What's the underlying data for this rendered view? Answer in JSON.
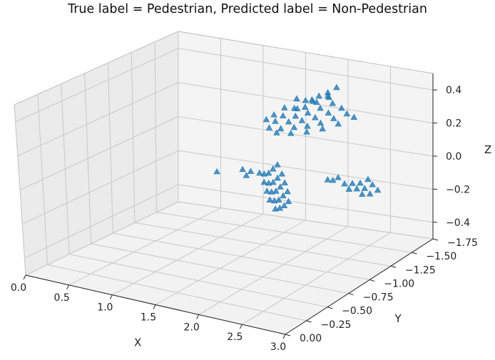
{
  "chart_data": {
    "type": "scatter3d",
    "title": "True label = Pedestrian, Predicted label = Non-Pedestrian",
    "xlabel": "X",
    "ylabel": "Y",
    "zlabel": "Z",
    "xlim": [
      0.0,
      3.0
    ],
    "ylim": [
      0.0,
      -1.75
    ],
    "zlim": [
      -0.5,
      0.5
    ],
    "x_ticks": [
      "3.0",
      "2.5",
      "2.0",
      "1.5",
      "1.0",
      "0.5",
      "0.0"
    ],
    "y_ticks": [
      "0.00",
      "−0.25",
      "−0.50",
      "−0.75",
      "−1.00",
      "−1.25",
      "−1.50",
      "−1.75"
    ],
    "z_ticks": [
      "0.4",
      "0.2",
      "0.0",
      "−0.2",
      "−0.4"
    ],
    "marker": "triangle",
    "color": "#1f77b4",
    "grid": true,
    "series": [
      {
        "points": [
          [
            2.35,
            -1.3,
            0.5
          ],
          [
            2.3,
            -1.25,
            0.48
          ],
          [
            2.25,
            -1.2,
            0.47
          ],
          [
            2.22,
            -1.15,
            0.46
          ],
          [
            2.2,
            -1.1,
            0.47
          ],
          [
            2.15,
            -1.05,
            0.49
          ],
          [
            2.28,
            -1.28,
            0.44
          ],
          [
            2.22,
            -1.2,
            0.43
          ],
          [
            2.17,
            -1.12,
            0.42
          ],
          [
            2.12,
            -1.05,
            0.43
          ],
          [
            2.08,
            -0.98,
            0.45
          ],
          [
            2.3,
            -1.3,
            0.4
          ],
          [
            2.24,
            -1.22,
            0.39
          ],
          [
            2.18,
            -1.14,
            0.38
          ],
          [
            2.12,
            -1.06,
            0.38
          ],
          [
            2.06,
            -0.98,
            0.4
          ],
          [
            2.02,
            -0.92,
            0.42
          ],
          [
            2.35,
            -1.35,
            0.36
          ],
          [
            2.28,
            -1.27,
            0.35
          ],
          [
            2.21,
            -1.19,
            0.34
          ],
          [
            2.14,
            -1.11,
            0.34
          ],
          [
            2.07,
            -1.03,
            0.35
          ],
          [
            2.0,
            -0.95,
            0.37
          ],
          [
            1.95,
            -0.9,
            0.39
          ],
          [
            2.38,
            -1.38,
            0.32
          ],
          [
            2.31,
            -1.3,
            0.31
          ],
          [
            2.24,
            -1.22,
            0.3
          ],
          [
            2.17,
            -1.14,
            0.3
          ],
          [
            2.1,
            -1.06,
            0.31
          ],
          [
            2.03,
            -0.98,
            0.32
          ],
          [
            1.97,
            -0.91,
            0.34
          ],
          [
            2.42,
            -1.42,
            0.29
          ],
          [
            2.33,
            -1.33,
            0.27
          ],
          [
            2.24,
            -1.24,
            0.26
          ],
          [
            2.15,
            -1.15,
            0.26
          ],
          [
            2.06,
            -1.06,
            0.27
          ],
          [
            1.98,
            -0.98,
            0.29
          ],
          [
            2.3,
            -1.25,
            0.46
          ],
          [
            2.2,
            -1.18,
            0.44
          ],
          [
            2.1,
            -1.1,
            0.41
          ]
        ]
      },
      {
        "points": [
          [
            2.7,
            -1.3,
            -0.02
          ],
          [
            2.66,
            -1.25,
            -0.03
          ],
          [
            2.62,
            -1.2,
            -0.02
          ],
          [
            2.58,
            -1.15,
            -0.01
          ],
          [
            2.72,
            -1.33,
            -0.06
          ],
          [
            2.68,
            -1.28,
            -0.07
          ],
          [
            2.64,
            -1.23,
            -0.06
          ],
          [
            2.6,
            -1.18,
            -0.05
          ],
          [
            2.75,
            -1.36,
            -0.1
          ],
          [
            2.71,
            -1.31,
            -0.11
          ],
          [
            2.67,
            -1.26,
            -0.1
          ],
          [
            2.58,
            -1.08,
            0.05
          ],
          [
            2.55,
            -1.05,
            0.04
          ],
          [
            2.52,
            -1.02,
            0.05
          ],
          [
            1.85,
            -1.1,
            0.05
          ],
          [
            1.85,
            -1.05,
            0.04
          ],
          [
            1.85,
            -1.0,
            0.03
          ],
          [
            1.85,
            -0.95,
            0.04
          ],
          [
            1.85,
            -0.9,
            0.06
          ],
          [
            1.9,
            -1.1,
            0.0
          ],
          [
            1.9,
            -1.05,
            -0.01
          ],
          [
            1.9,
            -1.0,
            -0.02
          ],
          [
            1.9,
            -0.95,
            -0.01
          ],
          [
            1.9,
            -0.9,
            0.01
          ],
          [
            1.93,
            -1.1,
            -0.05
          ],
          [
            1.93,
            -1.05,
            -0.06
          ],
          [
            1.93,
            -1.0,
            -0.07
          ],
          [
            1.93,
            -0.95,
            -0.06
          ],
          [
            1.93,
            -0.9,
            -0.04
          ],
          [
            1.96,
            -1.1,
            -0.1
          ],
          [
            1.96,
            -1.05,
            -0.11
          ],
          [
            1.96,
            -1.0,
            -0.12
          ],
          [
            1.96,
            -0.95,
            -0.11
          ],
          [
            1.96,
            -0.9,
            -0.09
          ],
          [
            1.99,
            -1.08,
            -0.15
          ],
          [
            1.99,
            -1.03,
            -0.16
          ],
          [
            1.99,
            -0.98,
            -0.16
          ],
          [
            1.99,
            -0.93,
            -0.15
          ],
          [
            1.8,
            -0.85,
            0.08
          ],
          [
            1.8,
            -0.8,
            0.07
          ],
          [
            1.78,
            -0.78,
            0.11
          ],
          [
            1.65,
            -0.62,
            0.13
          ]
        ]
      }
    ]
  }
}
